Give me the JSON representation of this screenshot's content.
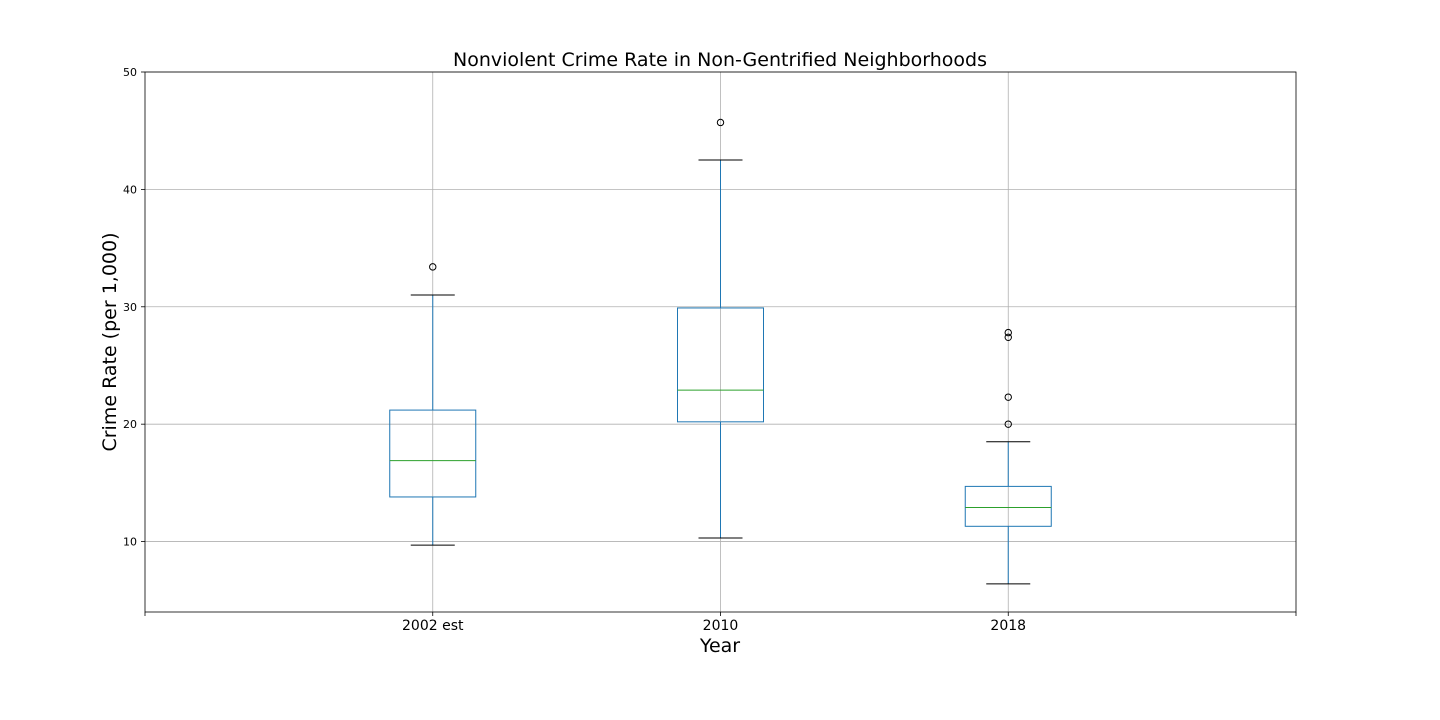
{
  "chart_data": {
    "type": "box",
    "title": "Nonviolent Crime Rate in Non-Gentrified Neighborhoods",
    "xlabel": "Year",
    "ylabel": "Crime Rate (per 1,000)",
    "categories": [
      "2002 est",
      "2010",
      "2018"
    ],
    "ylim": [
      4,
      50
    ],
    "yticks": [
      10,
      20,
      30,
      40,
      50
    ],
    "grid": true,
    "boxes": [
      {
        "category": "2002 est",
        "whisker_low": 9.7,
        "q1": 13.8,
        "median": 16.9,
        "q3": 21.2,
        "whisker_high": 31.0,
        "outliers": [
          33.4
        ]
      },
      {
        "category": "2010",
        "whisker_low": 10.3,
        "q1": 20.2,
        "median": 22.9,
        "q3": 29.9,
        "whisker_high": 42.5,
        "outliers": [
          45.7
        ]
      },
      {
        "category": "2018",
        "whisker_low": 6.4,
        "q1": 11.3,
        "median": 12.9,
        "q3": 14.7,
        "whisker_high": 18.5,
        "outliers": [
          20.0,
          22.3,
          27.4,
          27.8
        ]
      }
    ],
    "colors": {
      "box": "#1f77b4",
      "median": "#2ca02c",
      "cap": "#000000",
      "outlier": "#000000",
      "grid": "#b0b0b0"
    }
  }
}
